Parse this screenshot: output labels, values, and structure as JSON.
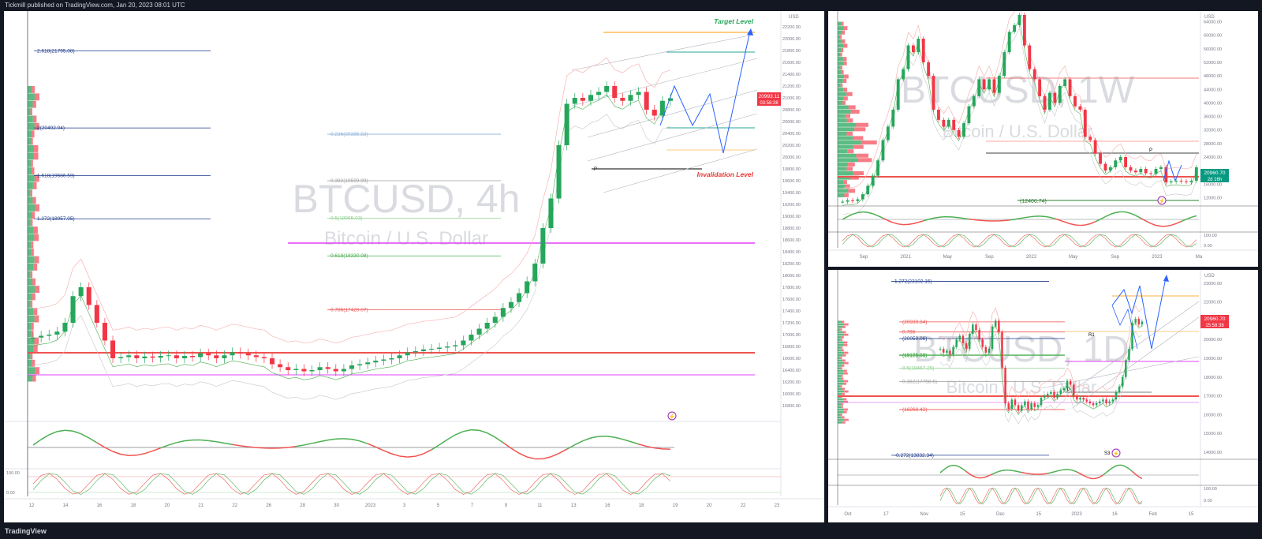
{
  "header": {
    "publisher_line": "Tickmill published on TradingView.com, Jan 20, 2023 08:01 UTC"
  },
  "footer": {
    "brand": "TradingView"
  },
  "chart_data": [
    {
      "type": "candlestick",
      "watermark_symbol": "BTCUSD, 4h",
      "watermark_desc": "Bitcoin / U.S. Dollar",
      "y_axis_unit": "USD",
      "ylim": [
        15600,
        22400
      ],
      "price_ticks": [
        22200,
        22000,
        21800,
        21600,
        21400,
        21200,
        21000,
        20800,
        20600,
        20400,
        20200,
        20000,
        19800,
        19600,
        19400,
        19200,
        19000,
        18800,
        18600,
        18400,
        18200,
        18000,
        17800,
        17600,
        17400,
        17200,
        17000,
        16800,
        16600,
        16400,
        16200,
        16000,
        15800
      ],
      "x_ticks": [
        "12",
        "14",
        "16",
        "18",
        "20",
        "21",
        "22",
        "26",
        "28",
        "30",
        "2023",
        "3",
        "5",
        "7",
        "9",
        "11",
        "13",
        "16",
        "18",
        "19",
        "20",
        "22",
        "23"
      ],
      "last_price_label": "20993.11",
      "countdown_label": "03:58:38",
      "close_path": [
        16950,
        16980,
        17000,
        17050,
        17200,
        17650,
        17800,
        17500,
        17200,
        16900,
        16600,
        16620,
        16650,
        16600,
        16630,
        16610,
        16640,
        16650,
        16600,
        16640,
        16620,
        16680,
        16650,
        16600,
        16650,
        16700,
        16680,
        16650,
        16620,
        16600,
        16500,
        16450,
        16400,
        16420,
        16380,
        16400,
        16450,
        16420,
        16380,
        16420,
        16480,
        16500,
        16530,
        16560,
        16580,
        16600,
        16650,
        16700,
        16720,
        16750,
        16760,
        16780,
        16800,
        16820,
        16900,
        17000,
        17100,
        17200,
        17300,
        17450,
        17550,
        17700,
        17900,
        18200,
        18800,
        19300,
        20200,
        20900,
        21000,
        20950,
        21050,
        21100,
        21200,
        21000,
        20950,
        21050,
        21100,
        20800,
        20700,
        20950,
        20993
      ],
      "fib_levels": [
        {
          "label": "2.618(21795.08)",
          "value": 21795.08,
          "color": "#1e3a8a"
        },
        {
          "label": "2(20492.04)",
          "value": 20492.04,
          "color": "#1e3a8a"
        },
        {
          "label": "1.618(19686.59)",
          "value": 19686.59,
          "color": "#1e3a8a"
        },
        {
          "label": "1.272(18957.05)",
          "value": 18957.05,
          "color": "#1e3a8a"
        },
        {
          "label": "0.236(20385.83)",
          "value": 20385.83,
          "color": "#8fb3d9"
        },
        {
          "label": "0.382(19599.99)",
          "value": 19599.99,
          "color": "#9e9e9e"
        },
        {
          "label": "0.5(18965.03)",
          "value": 18965.03,
          "color": "#8fd18f"
        },
        {
          "label": "0.618(18330.08)",
          "value": 18330.08,
          "color": "#4caf50"
        },
        {
          "label": "0.786(17420.07)",
          "value": 17420.07,
          "color": "#ef5350"
        }
      ],
      "annotations": [
        "Target Level",
        "Invalidation Level",
        "P"
      ],
      "indicator_labels": [
        "100.00",
        "0.00"
      ]
    },
    {
      "type": "candlestick",
      "watermark_symbol": "BTCUSD, 1W",
      "watermark_desc": "Bitcoin / U.S. Dollar",
      "y_axis_unit": "USD",
      "ylim": [
        10000,
        66000
      ],
      "price_ticks": [
        64000,
        60000,
        56000,
        52000,
        48000,
        44000,
        40000,
        36000,
        32000,
        28000,
        24000,
        20000,
        16000,
        12000
      ],
      "x_ticks": [
        "Sep",
        "2021",
        "May",
        "Sep",
        "2022",
        "May",
        "Sep",
        "2023",
        "Ma"
      ],
      "last_price_label": "20960.70",
      "countdown_label": "2d 16h",
      "close_path": [
        10800,
        11200,
        11000,
        11500,
        13000,
        15500,
        18500,
        23000,
        29000,
        33000,
        38000,
        47000,
        50000,
        57000,
        55000,
        59000,
        52000,
        48000,
        38000,
        35000,
        33000,
        35000,
        32000,
        30000,
        34000,
        39000,
        42000,
        47000,
        44000,
        47000,
        43000,
        48000,
        55000,
        61000,
        63000,
        66000,
        57000,
        50000,
        47000,
        42000,
        38000,
        43000,
        40000,
        45000,
        47000,
        42000,
        39000,
        38000,
        30000,
        29000,
        25000,
        22000,
        20000,
        21000,
        23000,
        24000,
        21000,
        20000,
        19500,
        20500,
        19200,
        19000,
        20500,
        21000,
        16500,
        16800,
        17000,
        16800,
        16600,
        17000,
        20960
      ],
      "annotations": [
        "(12406.74)",
        "P"
      ],
      "indicator_labels": [
        "100.00",
        "0.00"
      ]
    },
    {
      "type": "candlestick",
      "watermark_symbol": "BTCUSD, 1D",
      "watermark_desc": "Bitcoin / U.S. Dollar",
      "y_axis_unit": "USD",
      "ylim": [
        13700,
        23500
      ],
      "price_ticks": [
        23000,
        22000,
        21000,
        20000,
        19000,
        18000,
        17000,
        16000,
        15000,
        14000
      ],
      "x_ticks": [
        "Oct",
        "17",
        "Nov",
        "15",
        "Dec",
        "15",
        "2023",
        "16",
        "Feb",
        "15"
      ],
      "last_price_label": "20960.70",
      "countdown_label": "15:58:38",
      "close_path": [
        19500,
        19300,
        19400,
        19200,
        19600,
        20000,
        20200,
        19800,
        19500,
        20300,
        20800,
        20500,
        20000,
        19600,
        19300,
        19500,
        20700,
        21000,
        20400,
        18500,
        16600,
        16300,
        16800,
        16500,
        16200,
        16500,
        16700,
        16300,
        16600,
        16400,
        16500,
        16900,
        17000,
        17100,
        17200,
        16900,
        17100,
        17300,
        17400,
        17800,
        17600,
        17000,
        16800,
        16900,
        16800,
        16700,
        16600,
        16500,
        16600,
        16700,
        16800,
        16600,
        16700,
        16800,
        17200,
        17500,
        18000,
        18900,
        19500,
        20900,
        21100,
        20800,
        20960
      ],
      "fib_levels": [
        {
          "label": "1.272(23102.15)",
          "value": 23102.15,
          "color": "#1e3a8a"
        },
        {
          "label": "(20939.84)",
          "value": 20939.84,
          "color": "#ef5350"
        },
        {
          "label": "0.786",
          "value": 20400,
          "color": "#ef5350"
        },
        {
          "label": "(20050.06)",
          "value": 20050.06,
          "color": "#1e3a8a"
        },
        {
          "label": "(19176.89)",
          "value": 19176.89,
          "color": "#4caf50"
        },
        {
          "label": "(19155.58)",
          "value": 19155.58,
          "color": "#4caf50"
        },
        {
          "label": "0.5(18467.25)",
          "value": 18467.25,
          "color": "#8fd18f"
        },
        {
          "label": "0.382(17758.6)",
          "value": 17758.6,
          "color": "#9e9e9e"
        },
        {
          "label": "(16268.43)",
          "value": 16268.43,
          "color": "#ef5350"
        },
        {
          "label": "-0.272(13832.34)",
          "value": 13832.34,
          "color": "#1e3a8a"
        }
      ],
      "annotations": [
        "R1",
        "P",
        "S3"
      ],
      "indicator_labels": [
        "100.00",
        "0.00"
      ]
    }
  ]
}
